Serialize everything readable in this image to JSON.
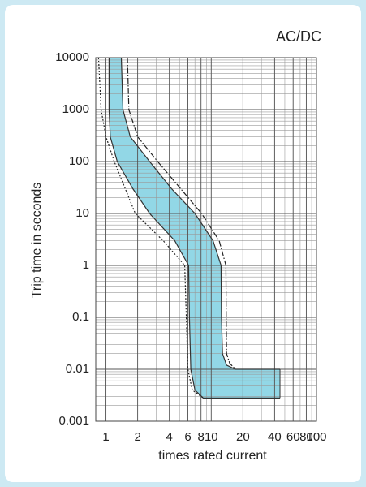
{
  "chart_data": {
    "type": "trip-curve",
    "title": "AC/DC",
    "x_label": "times rated current",
    "y_label": "Trip time in seconds",
    "x_log": true,
    "y_log": true,
    "grid": true,
    "fill": "#7fd0e2",
    "xlim": [
      0.8,
      100
    ],
    "ylim": [
      0.001,
      10000
    ],
    "xticks": [
      1,
      2,
      4,
      6,
      8,
      10,
      20,
      40,
      60,
      80,
      100
    ],
    "yticks": [
      0.001,
      0.01,
      0.1,
      1,
      10,
      100,
      1000,
      10000
    ],
    "series": [
      {
        "color": "#333333",
        "style": "solid",
        "x": [
          1.07,
          1.07,
          1.1,
          1.28,
          1.8,
          2.6,
          4.5,
          6.1,
          6.2,
          6.4,
          7,
          8.4,
          45
        ],
        "values": [
          10000,
          1000,
          300,
          100,
          30,
          10,
          3,
          1,
          0.1,
          0.01,
          0.004,
          0.0028,
          0.0028
        ]
      },
      {
        "color": "#333333",
        "style": "solid",
        "x": [
          1.4,
          1.45,
          1.7,
          2.6,
          4.2,
          7,
          10.4,
          12.4,
          12.5,
          12.8,
          14,
          17,
          45
        ],
        "values": [
          10000,
          1000,
          300,
          100,
          30,
          10,
          3,
          1,
          0.1,
          0.02,
          0.012,
          0.01,
          0.01
        ]
      },
      {
        "color": "#222222",
        "style": "dotted",
        "x": [
          0.85,
          0.9,
          1.0,
          1.2,
          1.9,
          3.5,
          5.6,
          5.8,
          6,
          6.6,
          8.4
        ],
        "values": [
          10000,
          1000,
          300,
          100,
          10,
          3,
          1,
          0.1,
          0.01,
          0.004,
          0.0028
        ]
      },
      {
        "color": "#222222",
        "style": "dashdot",
        "x": [
          1.6,
          1.65,
          2.0,
          3.1,
          8.1,
          11.9,
          13.8,
          13.9,
          14,
          15,
          17
        ],
        "values": [
          10000,
          1000,
          300,
          100,
          10,
          3,
          1,
          0.1,
          0.02,
          0.013,
          0.01
        ]
      }
    ]
  }
}
